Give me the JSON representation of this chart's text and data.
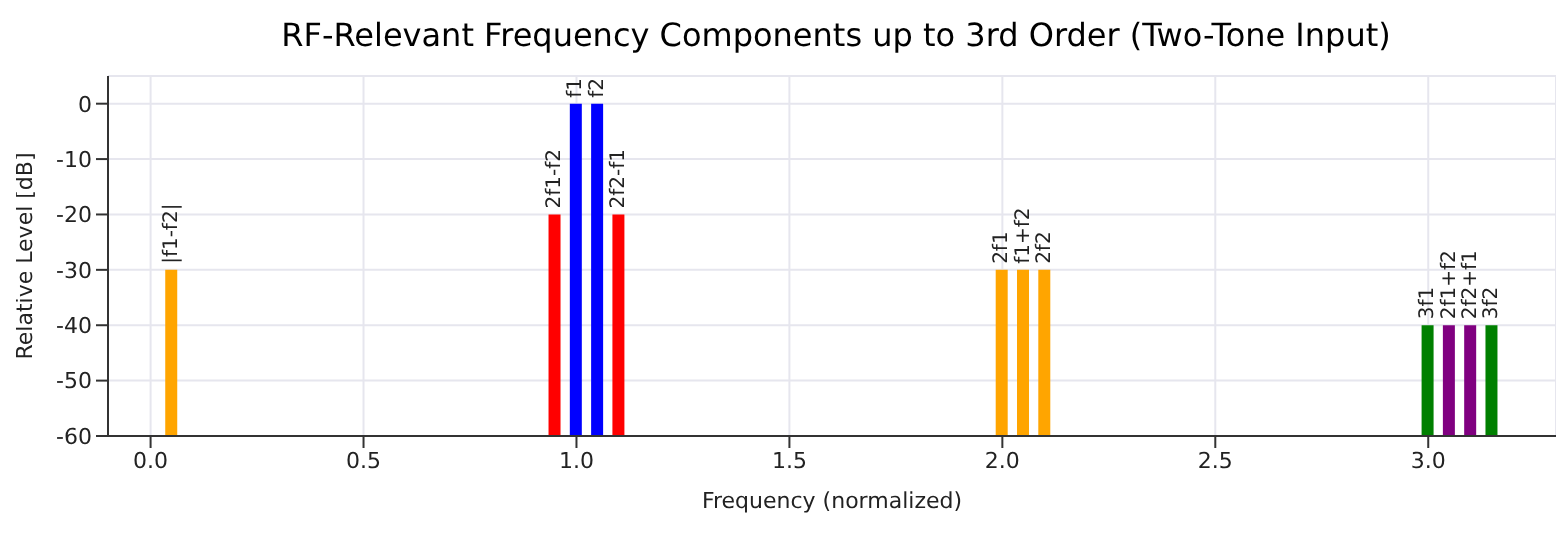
{
  "chart_data": {
    "type": "bar",
    "title": "RF-Relevant Frequency Components up to 3rd Order (Two-Tone Input)",
    "xlabel": "Frequency (normalized)",
    "ylabel": "Relative Level [dB]",
    "x": [
      0.05,
      0.95,
      1.0,
      1.05,
      1.1,
      2.0,
      2.05,
      2.1,
      3.0,
      3.05,
      3.1,
      3.15
    ],
    "base": [
      -60,
      -60,
      -60,
      -60,
      -60,
      -60,
      -60,
      -60,
      -60,
      -60,
      -60,
      -60
    ],
    "values": [
      30,
      40,
      60,
      60,
      40,
      30,
      30,
      30,
      20,
      20,
      20,
      20
    ],
    "colors": [
      "#ffa500",
      "#ff0000",
      "#0000ff",
      "#0000ff",
      "#ff0000",
      "#ffa500",
      "#ffa500",
      "#ffa500",
      "#008000",
      "#800080",
      "#800080",
      "#008000"
    ],
    "annotations": [
      {
        "text": "|f1-f2|",
        "x": 0.05,
        "y": -30
      },
      {
        "text": "2f1-f2",
        "x": 0.95,
        "y": -20
      },
      {
        "text": "f1",
        "x": 1.0,
        "y": 0
      },
      {
        "text": "f2",
        "x": 1.05,
        "y": 0
      },
      {
        "text": "2f2-f1",
        "x": 1.1,
        "y": -20
      },
      {
        "text": "2f1",
        "x": 2.0,
        "y": -30
      },
      {
        "text": "f1+f2",
        "x": 2.05,
        "y": -30
      },
      {
        "text": "2f2",
        "x": 2.1,
        "y": -30
      },
      {
        "text": "3f1",
        "x": 3.0,
        "y": -40
      },
      {
        "text": "2f1+f2",
        "x": 3.05,
        "y": -40
      },
      {
        "text": "2f2+f1",
        "x": 3.1,
        "y": -40
      },
      {
        "text": "3f2",
        "x": 3.15,
        "y": -40
      }
    ],
    "xlim": [
      -0.1,
      3.3
    ],
    "xticks": [
      {
        "value": 0,
        "label": "0.0"
      },
      0.5,
      {
        "value": 1,
        "label": "1.0"
      },
      1.5,
      {
        "value": 2,
        "label": "2.0"
      },
      2.5,
      {
        "value": 3,
        "label": "3.0"
      }
    ],
    "ylim": [
      -60,
      5
    ],
    "yticks": [
      -60,
      -50,
      -40,
      -30,
      -20,
      -10,
      0
    ],
    "grid": true
  }
}
